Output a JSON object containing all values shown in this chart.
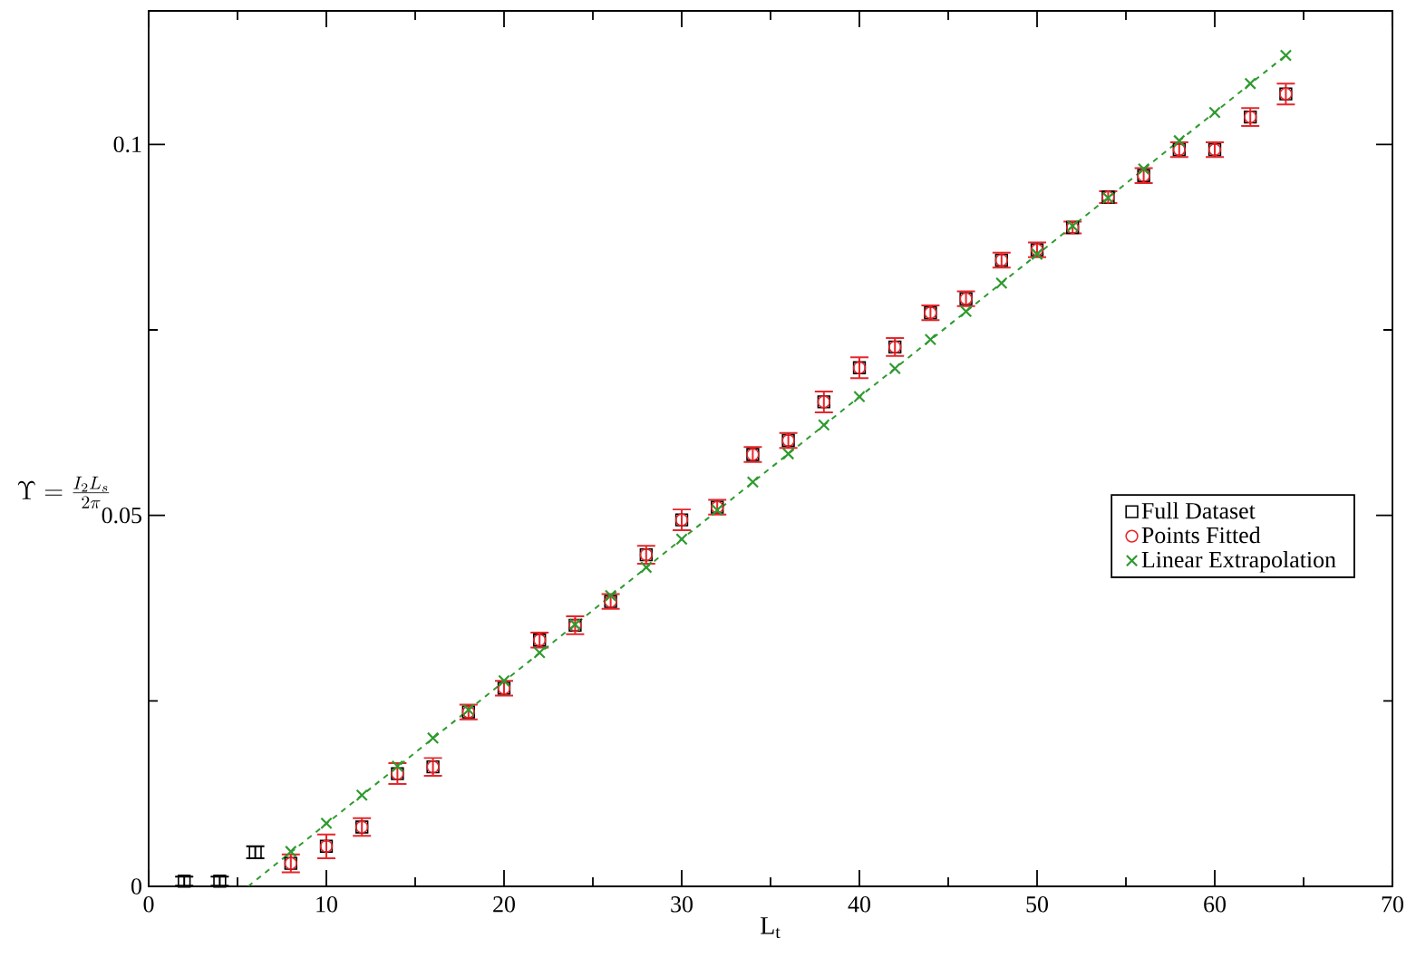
{
  "chart_data": {
    "type": "scatter",
    "xlabel": "L$_{t}$",
    "ylabel": "\\Upsilon = \\frac{I_2 L_s}{2\\pi}",
    "xlim": [
      0,
      70
    ],
    "ylim": [
      0,
      0.118
    ],
    "xticks": [
      0,
      {
        "value": 5,
        "label": null
      },
      10,
      {
        "value": 15,
        "label": null
      },
      20,
      {
        "value": 25,
        "label": null
      },
      30,
      {
        "value": 35,
        "label": null
      },
      40,
      {
        "value": 45,
        "label": null
      },
      50,
      {
        "value": 55,
        "label": null
      },
      60,
      {
        "value": 65,
        "label": null
      },
      70
    ],
    "yticks": [
      0,
      {
        "value": 0.025,
        "label": null
      },
      0.05,
      {
        "value": 0.075,
        "label": null
      },
      0.1
    ],
    "legend": "right",
    "series": [
      {
        "name": "Full Dataset",
        "marker": "square",
        "color": "#000000",
        "x": [
          2,
          4,
          6,
          8,
          10,
          12,
          14,
          16,
          18,
          20,
          22,
          24,
          26,
          28,
          30,
          32,
          34,
          36,
          38,
          40,
          42,
          44,
          46,
          48,
          50,
          52,
          54,
          56,
          58,
          60,
          62,
          64
        ],
        "values": [
          0.0007,
          0.0007,
          0.0046,
          0.0031,
          0.0054,
          0.008,
          0.0152,
          0.0161,
          0.0235,
          0.0267,
          0.0332,
          0.0352,
          0.0384,
          0.0447,
          0.0494,
          0.0511,
          0.0582,
          0.0601,
          0.0653,
          0.0699,
          0.0727,
          0.0773,
          0.0792,
          0.0844,
          0.0858,
          0.0888,
          0.0929,
          0.0958,
          0.0993,
          0.0993,
          0.1037,
          0.1068
        ],
        "errors": [
          0.0006,
          0.0006,
          0.0008,
          null,
          null,
          null,
          null,
          null,
          null,
          null,
          null,
          null,
          null,
          null,
          null,
          null,
          null,
          null,
          null,
          null,
          null,
          null,
          null,
          null,
          null,
          null,
          null,
          null,
          null,
          null,
          null,
          null
        ]
      },
      {
        "name": "Points Fitted",
        "marker": "circle",
        "color": "#e8262a",
        "x": [
          8,
          10,
          12,
          14,
          16,
          18,
          20,
          22,
          24,
          26,
          28,
          30,
          32,
          34,
          36,
          38,
          40,
          42,
          44,
          46,
          48,
          50,
          52,
          54,
          56,
          58,
          60,
          62,
          64
        ],
        "values": [
          0.0031,
          0.0054,
          0.008,
          0.0152,
          0.0161,
          0.0235,
          0.0267,
          0.0332,
          0.0352,
          0.0384,
          0.0447,
          0.0494,
          0.0511,
          0.0582,
          0.0601,
          0.0653,
          0.0699,
          0.0727,
          0.0773,
          0.0792,
          0.0844,
          0.0858,
          0.0888,
          0.0929,
          0.0958,
          0.0993,
          0.0993,
          0.1037,
          0.1068
        ],
        "errors": [
          0.0012,
          0.0016,
          0.0012,
          0.0014,
          0.0012,
          0.001,
          0.001,
          0.001,
          0.0012,
          0.001,
          0.0012,
          0.0014,
          0.001,
          0.001,
          0.001,
          0.0014,
          0.0014,
          0.0012,
          0.001,
          0.001,
          0.001,
          0.001,
          0.0008,
          0.0008,
          0.001,
          0.001,
          0.001,
          0.0012,
          0.0014
        ]
      },
      {
        "name": "Linear Extrapolation",
        "marker": "cross",
        "color": "#2e9a2e",
        "x": [
          8,
          10,
          12,
          14,
          16,
          18,
          20,
          22,
          24,
          26,
          28,
          30,
          32,
          34,
          36,
          38,
          40,
          42,
          44,
          46,
          48,
          50,
          52,
          54,
          56,
          58,
          60,
          62,
          64
        ],
        "values": [
          0.0047,
          0.0085,
          0.0123,
          0.0162,
          0.02,
          0.0238,
          0.0277,
          0.0315,
          0.0353,
          0.0392,
          0.043,
          0.0468,
          0.0507,
          0.0545,
          0.0583,
          0.0622,
          0.066,
          0.0698,
          0.0737,
          0.0775,
          0.0813,
          0.0852,
          0.089,
          0.0928,
          0.0967,
          0.1005,
          0.1043,
          0.1082,
          0.112
        ]
      },
      {
        "type": "line",
        "marker": "none",
        "line_style": "dashed",
        "color": "#2e9a2e",
        "x": [
          5.6,
          64
        ],
        "values": [
          0,
          0.112
        ]
      }
    ]
  }
}
